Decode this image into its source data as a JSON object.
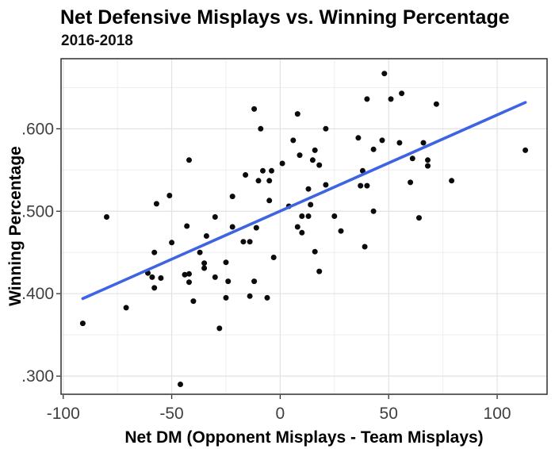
{
  "chart_data": {
    "type": "scatter",
    "title": "Net Defensive Misplays vs. Winning Percentage",
    "subtitle": "2016-2018",
    "xlabel": "Net DM (Opponent Misplays - Team Misplays)",
    "ylabel": "Winning Percentage",
    "xlim": [
      -101,
      123
    ],
    "ylim": [
      0.278,
      0.685
    ],
    "grid": true,
    "legend": false,
    "x_major_ticks": [
      -100,
      -50,
      0,
      50,
      100
    ],
    "x_tick_labels": [
      "-100",
      "-50",
      "0",
      "50",
      "100"
    ],
    "x_minor_gridlines": [
      -75,
      -25,
      25,
      75
    ],
    "y_major_ticks": [
      0.3,
      0.4,
      0.5,
      0.6
    ],
    "y_tick_labels": [
      ".300",
      ".400",
      ".500",
      ".600"
    ],
    "y_minor_gridlines": [
      0.35,
      0.45,
      0.55,
      0.65
    ],
    "point_color": "#0b0b0b",
    "trend_color": "#3E64E4",
    "grid_major_color": "#e2e2e2",
    "grid_minor_color": "#efefef",
    "border_color": "#2e2e2e",
    "trend_line": {
      "x": [
        -91,
        113
      ],
      "y": [
        0.394,
        0.632
      ]
    },
    "points": [
      [
        -91,
        0.364
      ],
      [
        -80,
        0.493
      ],
      [
        -71,
        0.383
      ],
      [
        -61,
        0.425
      ],
      [
        -59,
        0.42
      ],
      [
        -58,
        0.45
      ],
      [
        -58,
        0.407
      ],
      [
        -57,
        0.509
      ],
      [
        -55,
        0.419
      ],
      [
        -51,
        0.519
      ],
      [
        -50,
        0.462
      ],
      [
        -46,
        0.29
      ],
      [
        -44,
        0.423
      ],
      [
        -43,
        0.482
      ],
      [
        -42,
        0.562
      ],
      [
        -42,
        0.424
      ],
      [
        -42,
        0.414
      ],
      [
        -40,
        0.391
      ],
      [
        -37,
        0.45
      ],
      [
        -35,
        0.437
      ],
      [
        -35,
        0.431
      ],
      [
        -34,
        0.47
      ],
      [
        -30,
        0.493
      ],
      [
        -30,
        0.42
      ],
      [
        -28,
        0.358
      ],
      [
        -25,
        0.438
      ],
      [
        -25,
        0.395
      ],
      [
        -24,
        0.415
      ],
      [
        -22,
        0.518
      ],
      [
        -22,
        0.481
      ],
      [
        -17,
        0.463
      ],
      [
        -16,
        0.544
      ],
      [
        -14,
        0.463
      ],
      [
        -14,
        0.397
      ],
      [
        -12,
        0.624
      ],
      [
        -12,
        0.415
      ],
      [
        -11,
        0.48
      ],
      [
        -10,
        0.537
      ],
      [
        -9,
        0.6
      ],
      [
        -8,
        0.549
      ],
      [
        -6,
        0.395
      ],
      [
        -5,
        0.537
      ],
      [
        -5,
        0.513
      ],
      [
        -4,
        0.549
      ],
      [
        -3,
        0.444
      ],
      [
        1,
        0.558
      ],
      [
        4,
        0.506
      ],
      [
        6,
        0.586
      ],
      [
        8,
        0.618
      ],
      [
        8,
        0.481
      ],
      [
        9,
        0.568
      ],
      [
        10,
        0.494
      ],
      [
        10,
        0.474
      ],
      [
        13,
        0.494
      ],
      [
        13,
        0.527
      ],
      [
        14,
        0.508
      ],
      [
        15,
        0.562
      ],
      [
        16,
        0.574
      ],
      [
        16,
        0.451
      ],
      [
        18,
        0.556
      ],
      [
        18,
        0.427
      ],
      [
        21,
        0.6
      ],
      [
        21,
        0.532
      ],
      [
        25,
        0.494
      ],
      [
        28,
        0.476
      ],
      [
        36,
        0.589
      ],
      [
        37,
        0.531
      ],
      [
        38,
        0.549
      ],
      [
        39,
        0.457
      ],
      [
        40,
        0.636
      ],
      [
        40,
        0.531
      ],
      [
        43,
        0.575
      ],
      [
        43,
        0.5
      ],
      [
        47,
        0.586
      ],
      [
        48,
        0.667
      ],
      [
        51,
        0.636
      ],
      [
        55,
        0.583
      ],
      [
        56,
        0.643
      ],
      [
        60,
        0.535
      ],
      [
        61,
        0.564
      ],
      [
        64,
        0.492
      ],
      [
        66,
        0.583
      ],
      [
        68,
        0.562
      ],
      [
        68,
        0.555
      ],
      [
        72,
        0.63
      ],
      [
        79,
        0.537
      ],
      [
        113,
        0.574
      ]
    ]
  }
}
